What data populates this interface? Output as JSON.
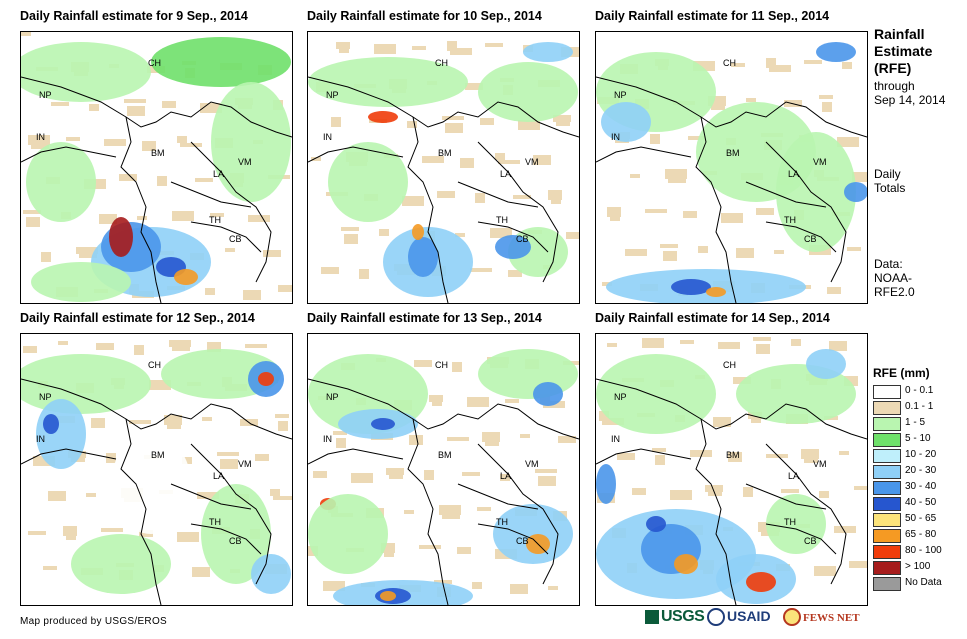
{
  "panels": [
    {
      "title": "Daily Rainfall estimate for 9 Sep., 2014"
    },
    {
      "title": "Daily Rainfall estimate for 10 Sep., 2014"
    },
    {
      "title": "Daily Rainfall estimate for 11 Sep., 2014"
    },
    {
      "title": "Daily Rainfall estimate for 12 Sep., 2014"
    },
    {
      "title": "Daily Rainfall estimate for 13 Sep., 2014"
    },
    {
      "title": "Daily Rainfall estimate for 14 Sep., 2014"
    }
  ],
  "map_labels": [
    "CH",
    "NP",
    "IN",
    "BM",
    "LA",
    "VM",
    "TH",
    "CB"
  ],
  "side": {
    "title_lines": [
      "Rainfall",
      "Estimate",
      "(RFE)"
    ],
    "through_lines": [
      "through",
      "Sep 14, 2014"
    ],
    "totals_lines": [
      "Daily",
      "Totals"
    ],
    "data_lines": [
      "Data:",
      "NOAA-",
      "RFE2.0"
    ]
  },
  "legend": {
    "title": "RFE (mm)",
    "items": [
      {
        "label": "0 - 0.1",
        "color": "#ffffff"
      },
      {
        "label": "0.1 - 1",
        "color": "#ecd9b5"
      },
      {
        "label": "1 - 5",
        "color": "#b9f5b0"
      },
      {
        "label": "5 - 10",
        "color": "#6fe06a"
      },
      {
        "label": "10 - 20",
        "color": "#bfeffb"
      },
      {
        "label": "20 - 30",
        "color": "#8fd0f7"
      },
      {
        "label": "30 - 40",
        "color": "#4a96ea"
      },
      {
        "label": "40 - 50",
        "color": "#2656cf"
      },
      {
        "label": "50 - 65",
        "color": "#fbe37a"
      },
      {
        "label": "65 - 80",
        "color": "#f59a23"
      },
      {
        "label": "80 - 100",
        "color": "#f03c0a"
      },
      {
        "label": "> 100",
        "color": "#a61c1c"
      },
      {
        "label": "No Data",
        "color": "#9a9a9a"
      }
    ]
  },
  "credit": "Map produced by USGS/EROS",
  "logos": {
    "usgs": "USGS",
    "usaid": "USAID",
    "fewsnet": "FEWS NET"
  }
}
